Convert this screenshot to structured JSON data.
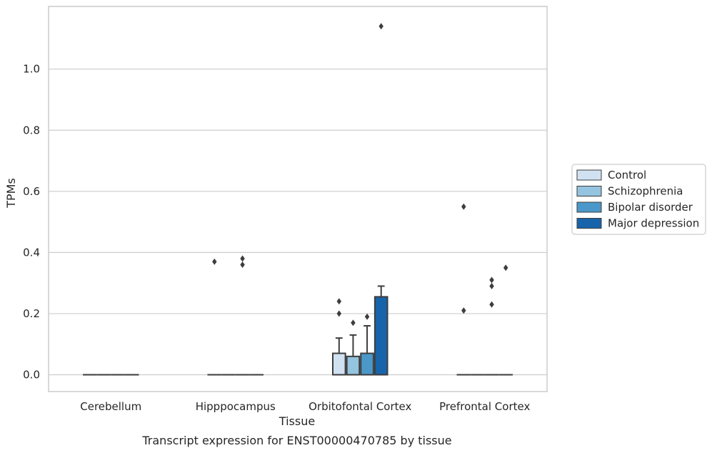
{
  "chart_data": {
    "type": "box",
    "title": "",
    "caption": "Transcript expression for ENST00000470785 by tissue",
    "xlabel": "Tissue",
    "ylabel": "TPMs",
    "ylim": [
      -0.055,
      1.205
    ],
    "yticks": [
      "0.0",
      "0.2",
      "0.4",
      "0.6",
      "0.8",
      "1.0"
    ],
    "grid": "horizontal",
    "legend_placement": "right-center",
    "categories": [
      "Cerebellum",
      "Hipppocampus",
      "Orbitofontal Cortex",
      "Prefrontal Cortex"
    ],
    "series": [
      {
        "name": "Control",
        "color": "#d0e1f2",
        "boxes": [
          {
            "q1": 0,
            "median": 0,
            "q3": 0,
            "whisker_low": 0,
            "whisker_high": 0,
            "outliers": []
          },
          {
            "q1": 0,
            "median": 0,
            "q3": 0,
            "whisker_low": 0,
            "whisker_high": 0,
            "outliers": [
              0.37
            ]
          },
          {
            "q1": 0,
            "median": 0,
            "q3": 0.07,
            "whisker_low": 0,
            "whisker_high": 0.12,
            "outliers": [
              0.2,
              0.24
            ]
          },
          {
            "q1": 0,
            "median": 0,
            "q3": 0,
            "whisker_low": 0,
            "whisker_high": 0,
            "outliers": [
              0.21,
              0.55
            ]
          }
        ]
      },
      {
        "name": "Schizophrenia",
        "color": "#94c4df",
        "boxes": [
          {
            "q1": 0,
            "median": 0,
            "q3": 0,
            "whisker_low": 0,
            "whisker_high": 0,
            "outliers": []
          },
          {
            "q1": 0,
            "median": 0,
            "q3": 0,
            "whisker_low": 0,
            "whisker_high": 0,
            "outliers": []
          },
          {
            "q1": 0,
            "median": 0,
            "q3": 0.06,
            "whisker_low": 0,
            "whisker_high": 0.13,
            "outliers": [
              0.17
            ]
          },
          {
            "q1": 0,
            "median": 0,
            "q3": 0,
            "whisker_low": 0,
            "whisker_high": 0,
            "outliers": []
          }
        ]
      },
      {
        "name": "Bipolar disorder",
        "color": "#4a98c9",
        "boxes": [
          {
            "q1": 0,
            "median": 0,
            "q3": 0,
            "whisker_low": 0,
            "whisker_high": 0,
            "outliers": []
          },
          {
            "q1": 0,
            "median": 0,
            "q3": 0,
            "whisker_low": 0,
            "whisker_high": 0,
            "outliers": [
              0.36,
              0.38
            ]
          },
          {
            "q1": 0,
            "median": 0,
            "q3": 0.07,
            "whisker_low": 0,
            "whisker_high": 0.16,
            "outliers": [
              0.19
            ]
          },
          {
            "q1": 0,
            "median": 0,
            "q3": 0,
            "whisker_low": 0,
            "whisker_high": 0,
            "outliers": [
              0.23,
              0.29,
              0.31
            ]
          }
        ]
      },
      {
        "name": "Major depression",
        "color": "#1764ab",
        "boxes": [
          {
            "q1": 0,
            "median": 0,
            "q3": 0,
            "whisker_low": 0,
            "whisker_high": 0,
            "outliers": []
          },
          {
            "q1": 0,
            "median": 0,
            "q3": 0,
            "whisker_low": 0,
            "whisker_high": 0,
            "outliers": []
          },
          {
            "q1": 0,
            "median": 0,
            "q3": 0.255,
            "whisker_low": 0,
            "whisker_high": 0.29,
            "outliers": [
              1.14
            ]
          },
          {
            "q1": 0,
            "median": 0,
            "q3": 0,
            "whisker_low": 0,
            "whisker_high": 0,
            "outliers": [
              0.35
            ]
          }
        ]
      }
    ]
  }
}
